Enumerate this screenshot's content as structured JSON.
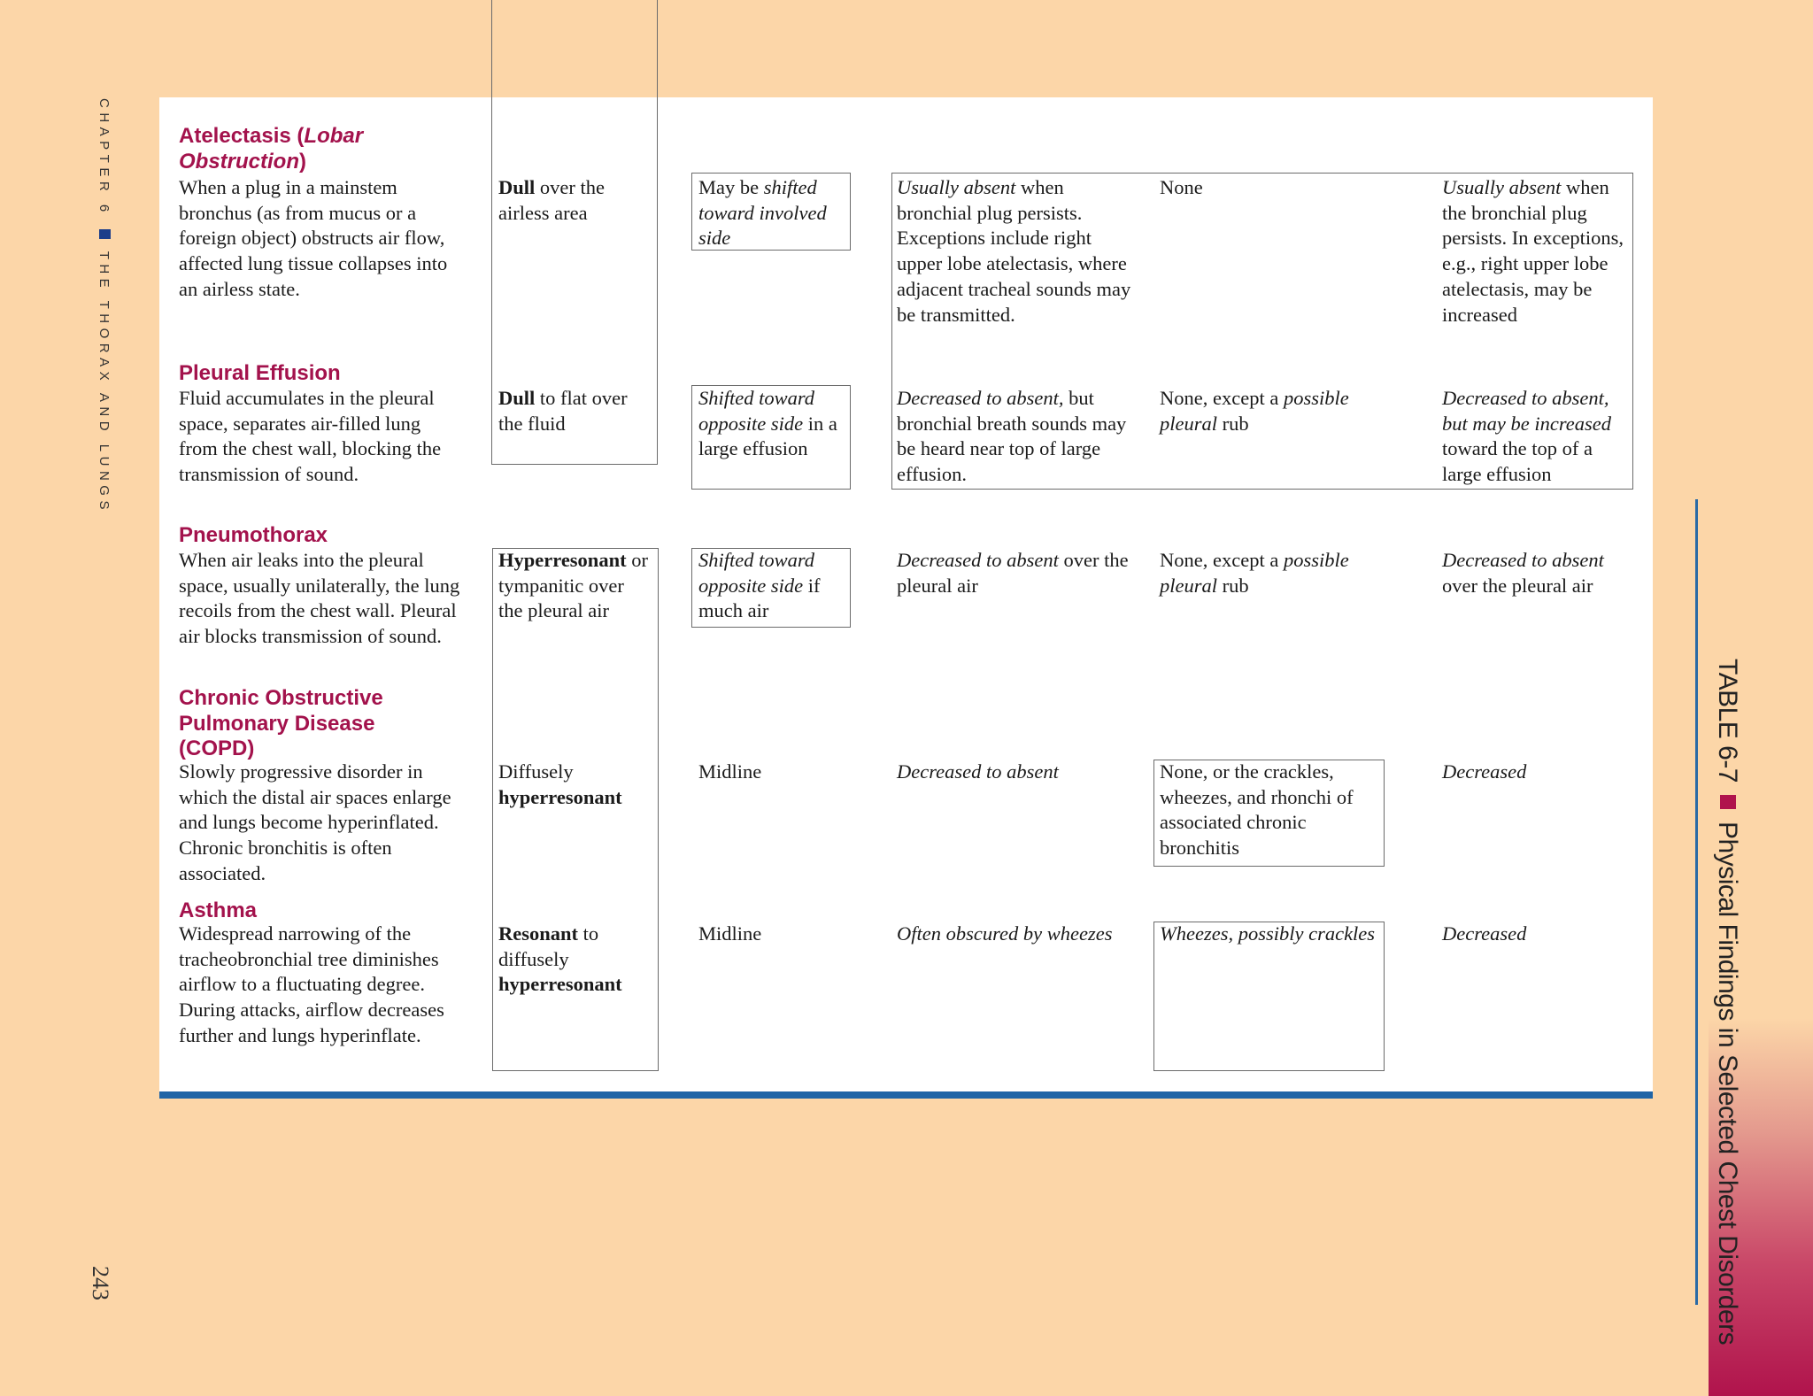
{
  "running_head": {
    "chapter": "CHAPTER 6",
    "section": "THE THORAX AND LUNGS",
    "page_number": "243"
  },
  "table_title": {
    "label": "TABLE 6-7",
    "title": "Physical Findings in Selected Chest Disorders"
  },
  "colors": {
    "background": "#fcd6a8",
    "heading": "#a3124c",
    "rule": "#1f64a6",
    "chapter_marker": "#1b3d8a",
    "title_marker": "#b0134c"
  },
  "rows": [
    {
      "name": [
        {
          "t": "Atelectasis"
        },
        {
          "t": " ("
        },
        {
          "t": "Lobar Obstruction",
          "s": "i"
        },
        {
          "t": ")"
        }
      ],
      "description": [
        {
          "t": "When a plug in a mainstem bronchus (as from mucus or a foreign object) obstructs air flow, affected lung tissue collapses into an airless state."
        }
      ],
      "percussion": [
        {
          "t": "Dull",
          "s": "b"
        },
        {
          "t": " over the airless area"
        }
      ],
      "trachea": [
        {
          "t": "May be "
        },
        {
          "t": "shifted toward involved side",
          "s": "i"
        }
      ],
      "breath_sounds": [
        {
          "t": "Usually absent",
          "s": "i"
        },
        {
          "t": " when bronchial plug persists. Exceptions include right upper lobe atelectasis, where adjacent tracheal sounds may be transmitted."
        }
      ],
      "adventitious": [
        {
          "t": "None"
        }
      ],
      "fremitus": [
        {
          "t": "Usually absent",
          "s": "i"
        },
        {
          "t": " when the bronchial plug persists. In exceptions, e.g., right upper lobe atelectasis, may be increased"
        }
      ]
    },
    {
      "name": [
        {
          "t": "Pleural Effusion"
        }
      ],
      "description": [
        {
          "t": "Fluid accumulates in the pleural space, separates air-filled lung from the chest wall, blocking the transmission of sound."
        }
      ],
      "percussion": [
        {
          "t": "Dull",
          "s": "b"
        },
        {
          "t": " to flat over the fluid"
        }
      ],
      "trachea": [
        {
          "t": "Shifted toward opposite side",
          "s": "i"
        },
        {
          "t": " in a large effusion"
        }
      ],
      "breath_sounds": [
        {
          "t": "Decreased to absent,",
          "s": "i"
        },
        {
          "t": " but bronchial breath sounds may be heard near top of large effusion."
        }
      ],
      "adventitious": [
        {
          "t": "None, except a "
        },
        {
          "t": "possible pleural",
          "s": "i"
        },
        {
          "t": " rub"
        }
      ],
      "fremitus": [
        {
          "t": "Decreased to absent, but may be increased",
          "s": "i"
        },
        {
          "t": " toward the top of a large effusion"
        }
      ]
    },
    {
      "name": [
        {
          "t": "Pneumothorax"
        }
      ],
      "description": [
        {
          "t": "When air leaks into the pleural space, usually unilaterally, the lung recoils from the chest wall. Pleural air blocks transmission of sound."
        }
      ],
      "percussion": [
        {
          "t": "Hyperresonant",
          "s": "b"
        },
        {
          "t": " or tympanitic over the pleural air"
        }
      ],
      "trachea": [
        {
          "t": "Shifted toward opposite side",
          "s": "i"
        },
        {
          "t": " if much air"
        }
      ],
      "breath_sounds": [
        {
          "t": "Decreased to absent",
          "s": "i"
        },
        {
          "t": " over the pleural air"
        }
      ],
      "adventitious": [
        {
          "t": "None, except a "
        },
        {
          "t": "possible pleural",
          "s": "i"
        },
        {
          "t": " rub"
        }
      ],
      "fremitus": [
        {
          "t": "Decreased to absent",
          "s": "i"
        },
        {
          "t": " over the pleural air"
        }
      ]
    },
    {
      "name": [
        {
          "t": "Chronic Obstructive Pulmonary Disease (COPD)"
        }
      ],
      "description": [
        {
          "t": "Slowly progressive disorder in which the distal air spaces enlarge and lungs become hyperinflated. Chronic bronchitis is often associated."
        }
      ],
      "percussion": [
        {
          "t": "Diffusely "
        },
        {
          "t": "hyperresonant",
          "s": "b"
        }
      ],
      "trachea": [
        {
          "t": "Midline"
        }
      ],
      "breath_sounds": [
        {
          "t": "Decreased to absent",
          "s": "i"
        }
      ],
      "adventitious": [
        {
          "t": "None, or the crackles, wheezes, and rhonchi of associated chronic bronchitis"
        }
      ],
      "fremitus": [
        {
          "t": "Decreased",
          "s": "i"
        }
      ]
    },
    {
      "name": [
        {
          "t": "Asthma"
        }
      ],
      "description": [
        {
          "t": "Widespread narrowing of the tracheobronchial tree diminishes airflow to a fluctuating degree. During attacks, airflow decreases further and lungs hyperinflate."
        }
      ],
      "percussion": [
        {
          "t": "Resonant",
          "s": "b"
        },
        {
          "t": " to diffusely "
        },
        {
          "t": "hyperresonant",
          "s": "b"
        }
      ],
      "trachea": [
        {
          "t": "Midline"
        }
      ],
      "breath_sounds": [
        {
          "t": "Often obscured by wheezes",
          "s": "i"
        }
      ],
      "adventitious": [
        {
          "t": "Wheezes, possibly crackles",
          "s": "i"
        }
      ],
      "fremitus": [
        {
          "t": "Decreased",
          "s": "i"
        }
      ]
    }
  ]
}
